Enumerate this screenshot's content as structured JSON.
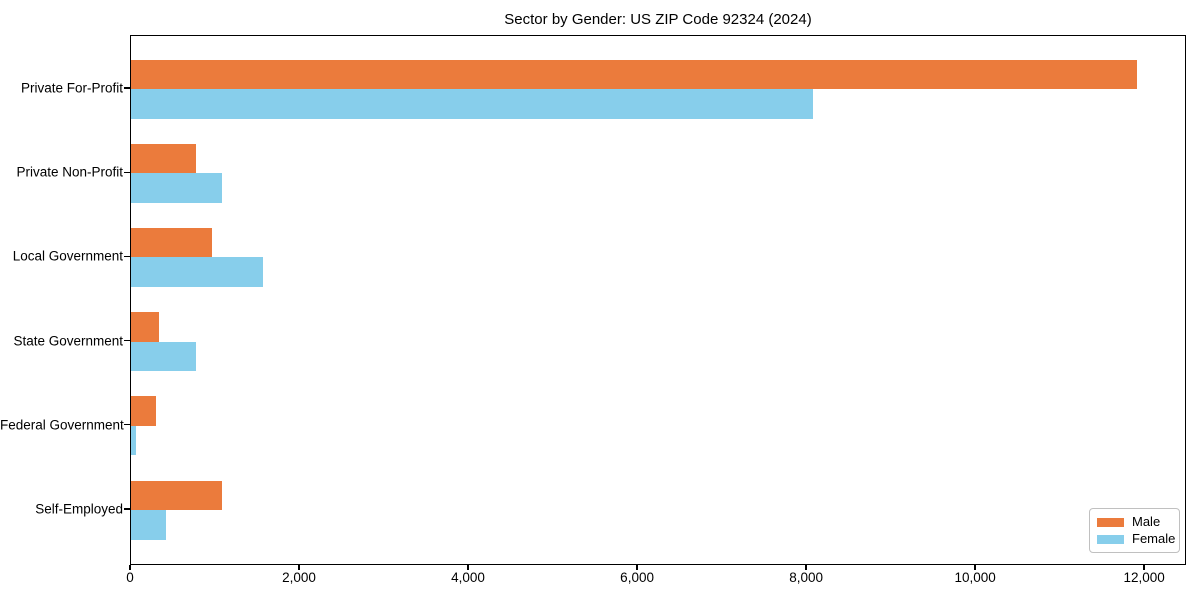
{
  "chart_data": {
    "type": "bar",
    "orientation": "horizontal",
    "title": "Sector by Gender: US ZIP Code 92324 (2024)",
    "categories": [
      "Private For-Profit",
      "Private Non-Profit",
      "Local Government",
      "State Government",
      "Federal Government",
      "Self-Employed"
    ],
    "series": [
      {
        "name": "Male",
        "color": "#EB7B3C",
        "values": [
          11900,
          770,
          960,
          330,
          300,
          1080
        ]
      },
      {
        "name": "Female",
        "color": "#87CEEB",
        "values": [
          8070,
          1080,
          1560,
          770,
          60,
          410
        ]
      }
    ],
    "xlabel": "",
    "ylabel": "",
    "xlim": [
      0,
      12495
    ],
    "x_ticks": {
      "values": [
        0,
        2000,
        4000,
        6000,
        8000,
        10000,
        12000
      ],
      "labels": [
        "0",
        "2,000",
        "4,000",
        "6,000",
        "8,000",
        "10,000",
        "12,000"
      ]
    },
    "grid": false,
    "legend": {
      "position": "lower right"
    }
  }
}
